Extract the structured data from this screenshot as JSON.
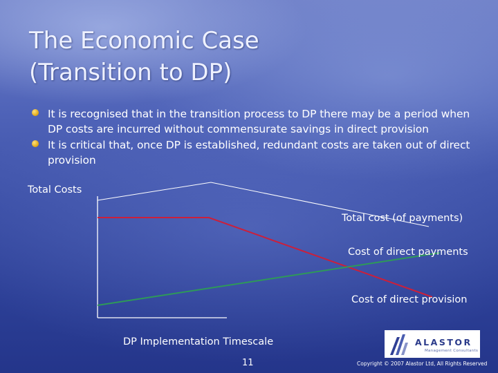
{
  "slide": {
    "title_line1": "The Economic Case",
    "title_line2": "(Transition to DP)",
    "bullets": [
      "It is recognised that in the transition process to DP there may be a period when DP costs are incurred without commensurate savings in direct provision",
      "It is critical that, once DP is established, redundant costs are taken out of direct provision"
    ],
    "page_number": "11",
    "copyright": "Copyright © 2007 Alastor Ltd, All Rights Reserved"
  },
  "diagram": {
    "y_label": "Total Costs",
    "x_label": "DP Implementation Timescale",
    "line_labels": {
      "total": "Total cost (of payments)",
      "direct_payments": "Cost of direct payments",
      "direct_provision": "Cost of direct provision"
    },
    "colors": {
      "total": "#ffffff",
      "direct_payments": "#2e9a58",
      "direct_provision": "#cc1f3a",
      "bullet": "#f0b820"
    }
  },
  "logo": {
    "name": "ALASTOR",
    "subtitle": "Management Consultants"
  },
  "icons": {
    "bullet": "bullet-dot-icon",
    "logo": "alastor-logo-icon"
  }
}
